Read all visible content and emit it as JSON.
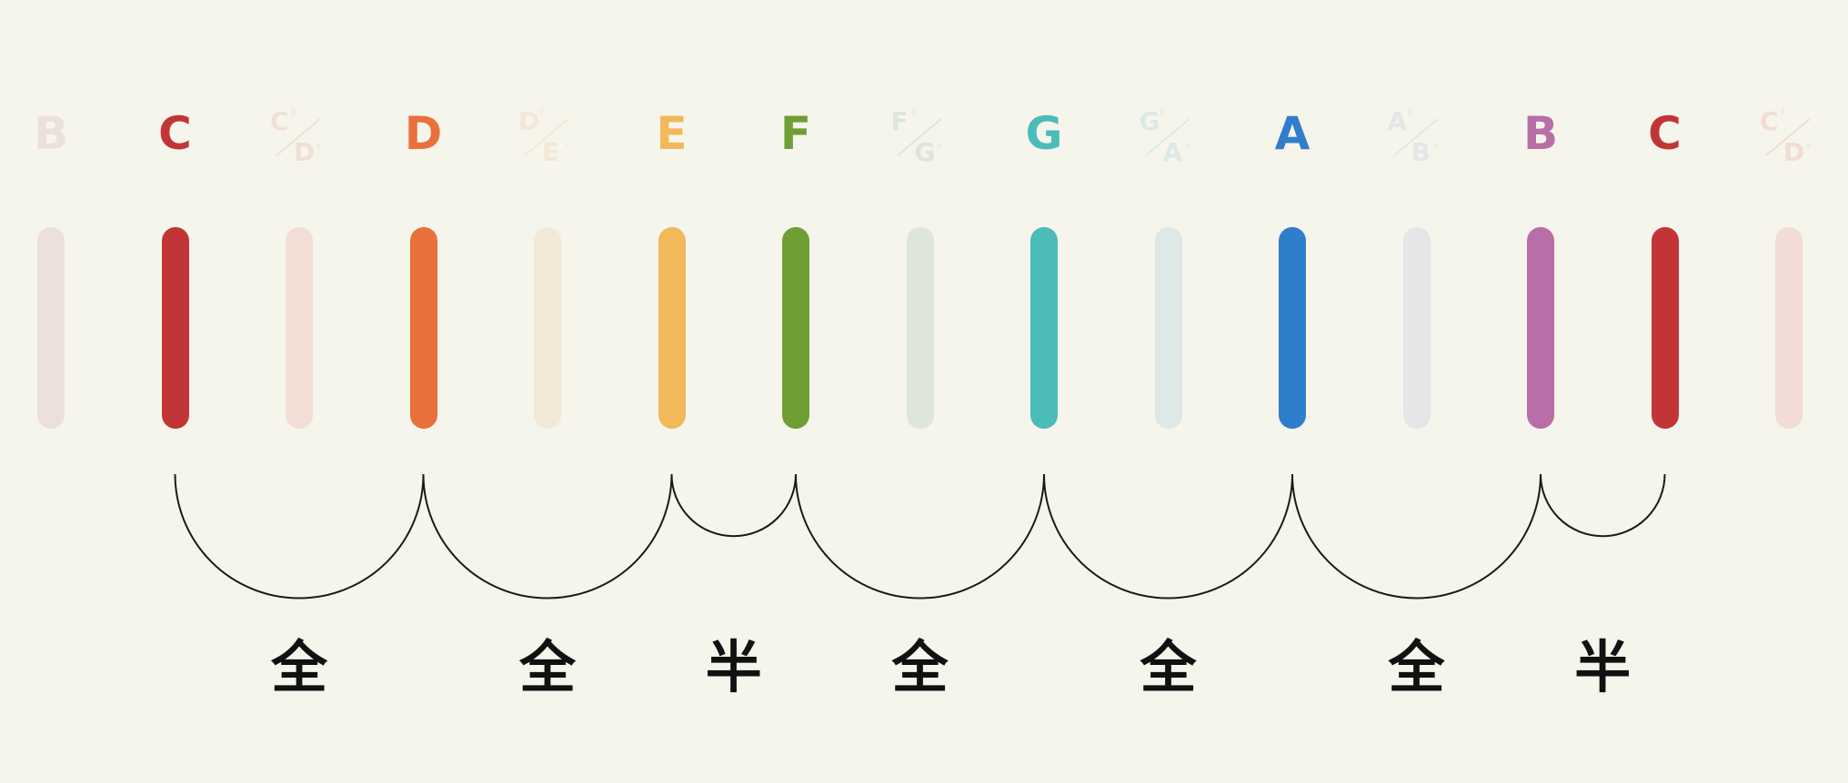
{
  "notes": [
    {
      "kind": "natural",
      "label": "B",
      "color": "#ede0dc",
      "dim": true
    },
    {
      "kind": "natural",
      "label": "C",
      "color": "#c13537",
      "dim": false
    },
    {
      "kind": "accidental",
      "sharp": "C",
      "flat": "D",
      "sharp_sign": "♯",
      "flat_sign": "♭",
      "color": "#f1dfd6",
      "dim": true
    },
    {
      "kind": "natural",
      "label": "D",
      "color": "#e8703a",
      "dim": false
    },
    {
      "kind": "accidental",
      "sharp": "D",
      "flat": "E",
      "sharp_sign": "♯",
      "flat_sign": "♭",
      "color": "#f3e7d8",
      "dim": true
    },
    {
      "kind": "natural",
      "label": "E",
      "color": "#f2b95a",
      "dim": false
    },
    {
      "kind": "natural",
      "label": "F",
      "color": "#6f9e35",
      "dim": false
    },
    {
      "kind": "accidental",
      "sharp": "F",
      "flat": "G",
      "sharp_sign": "♯",
      "flat_sign": "♭",
      "color": "#dde6d8",
      "dim": true
    },
    {
      "kind": "natural",
      "label": "G",
      "color": "#4bbcb8",
      "dim": false
    },
    {
      "kind": "accidental",
      "sharp": "G",
      "flat": "A",
      "sharp_sign": "♯",
      "flat_sign": "♭",
      "color": "#dde9e7",
      "dim": true
    },
    {
      "kind": "natural",
      "label": "A",
      "color": "#2f7ecb",
      "dim": false
    },
    {
      "kind": "accidental",
      "sharp": "A",
      "flat": "B",
      "sharp_sign": "♯",
      "flat_sign": "♭",
      "color": "#e6e5e8",
      "dim": true
    },
    {
      "kind": "natural",
      "label": "B",
      "color": "#b86ea6",
      "dim": false
    },
    {
      "kind": "natural",
      "label": "C",
      "color": "#c13537",
      "dim": false
    },
    {
      "kind": "accidental",
      "sharp": "C",
      "flat": "D",
      "sharp_sign": "♯",
      "flat_sign": "♭",
      "color": "#f1ddd5",
      "dim": true
    }
  ],
  "steps": [
    {
      "from": 1,
      "to": 3,
      "label": "全"
    },
    {
      "from": 3,
      "to": 5,
      "label": "全"
    },
    {
      "from": 5,
      "to": 6,
      "label": "半"
    },
    {
      "from": 6,
      "to": 8,
      "label": "全"
    },
    {
      "from": 8,
      "to": 10,
      "label": "全"
    },
    {
      "from": 10,
      "to": 12,
      "label": "全"
    },
    {
      "from": 12,
      "to": 13,
      "label": "半"
    }
  ],
  "colors": {
    "background": "#f6f5ec",
    "arc": "#1a1a1a",
    "step_text": "#111111"
  }
}
